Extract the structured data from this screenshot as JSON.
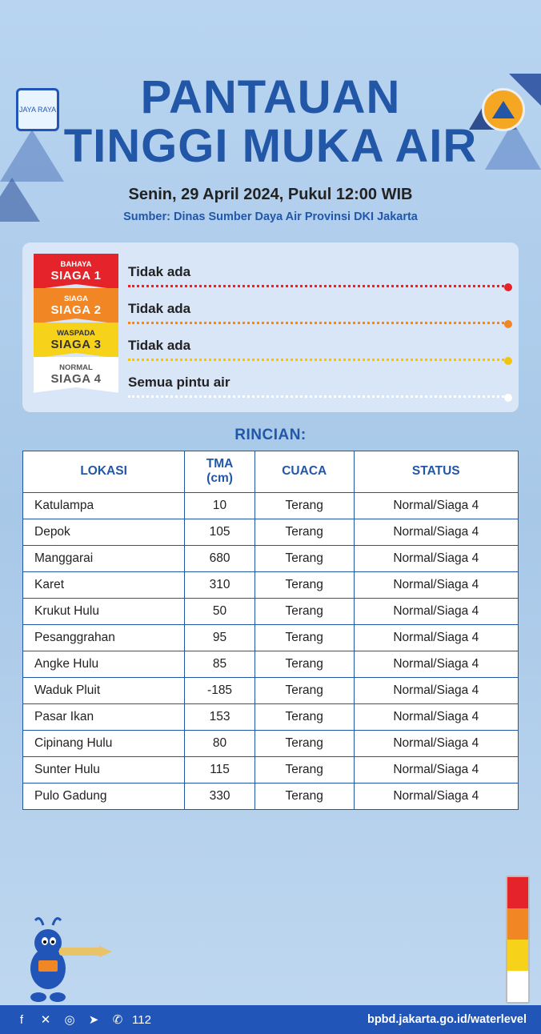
{
  "colors": {
    "primary_blue": "#2257a8",
    "bg_card": "#d8e6f7",
    "siaga1": "#e4232a",
    "siaga2": "#f18625",
    "siaga3": "#f7d21b",
    "siaga4": "#ffffff",
    "footer": "#2156b8"
  },
  "header": {
    "logo_left_alt": "JAYA RAYA",
    "logo_right_alt": "BPBD"
  },
  "title": {
    "line1": "PANTAUAN",
    "line2": "TINGGI MUKA AIR",
    "date": "Senin, 29 April 2024, Pukul 12:00 WIB",
    "source": "Sumber: Dinas Sumber Daya Air Provinsi DKI Jakarta"
  },
  "alerts": {
    "badges": [
      {
        "small": "BAHAYA",
        "big": "SIAGA 1"
      },
      {
        "small": "SIAGA",
        "big": "SIAGA 2"
      },
      {
        "small": "WASPADA",
        "big": "SIAGA 3"
      },
      {
        "small": "NORMAL",
        "big": "SIAGA 4"
      }
    ],
    "values": [
      "Tidak ada",
      "Tidak ada",
      "Tidak ada",
      "Semua pintu air"
    ]
  },
  "details": {
    "title": "RINCIAN:",
    "columns": {
      "lokasi": "LOKASI",
      "tma": "TMA\n(cm)",
      "cuaca": "CUACA",
      "status": "STATUS"
    },
    "rows": [
      {
        "lokasi": "Katulampa",
        "tma": "10",
        "cuaca": "Terang",
        "status": "Normal/Siaga 4"
      },
      {
        "lokasi": "Depok",
        "tma": "105",
        "cuaca": "Terang",
        "status": "Normal/Siaga 4"
      },
      {
        "lokasi": "Manggarai",
        "tma": "680",
        "cuaca": "Terang",
        "status": "Normal/Siaga 4"
      },
      {
        "lokasi": "Karet",
        "tma": "310",
        "cuaca": "Terang",
        "status": "Normal/Siaga 4"
      },
      {
        "lokasi": "Krukut Hulu",
        "tma": "50",
        "cuaca": "Terang",
        "status": "Normal/Siaga 4"
      },
      {
        "lokasi": "Pesanggrahan",
        "tma": "95",
        "cuaca": "Terang",
        "status": "Normal/Siaga 4"
      },
      {
        "lokasi": "Angke Hulu",
        "tma": "85",
        "cuaca": "Terang",
        "status": "Normal/Siaga 4"
      },
      {
        "lokasi": "Waduk Pluit",
        "tma": "-185",
        "cuaca": "Terang",
        "status": "Normal/Siaga 4"
      },
      {
        "lokasi": "Pasar Ikan",
        "tma": "153",
        "cuaca": "Terang",
        "status": "Normal/Siaga 4"
      },
      {
        "lokasi": "Cipinang Hulu",
        "tma": "80",
        "cuaca": "Terang",
        "status": "Normal/Siaga 4"
      },
      {
        "lokasi": "Sunter Hulu",
        "tma": "115",
        "cuaca": "Terang",
        "status": "Normal/Siaga 4"
      },
      {
        "lokasi": "Pulo Gadung",
        "tma": "330",
        "cuaca": "Terang",
        "status": "Normal/Siaga 4"
      }
    ]
  },
  "footer": {
    "emergency": "112",
    "url": "bpbd.jakarta.go.id/waterlevel"
  }
}
